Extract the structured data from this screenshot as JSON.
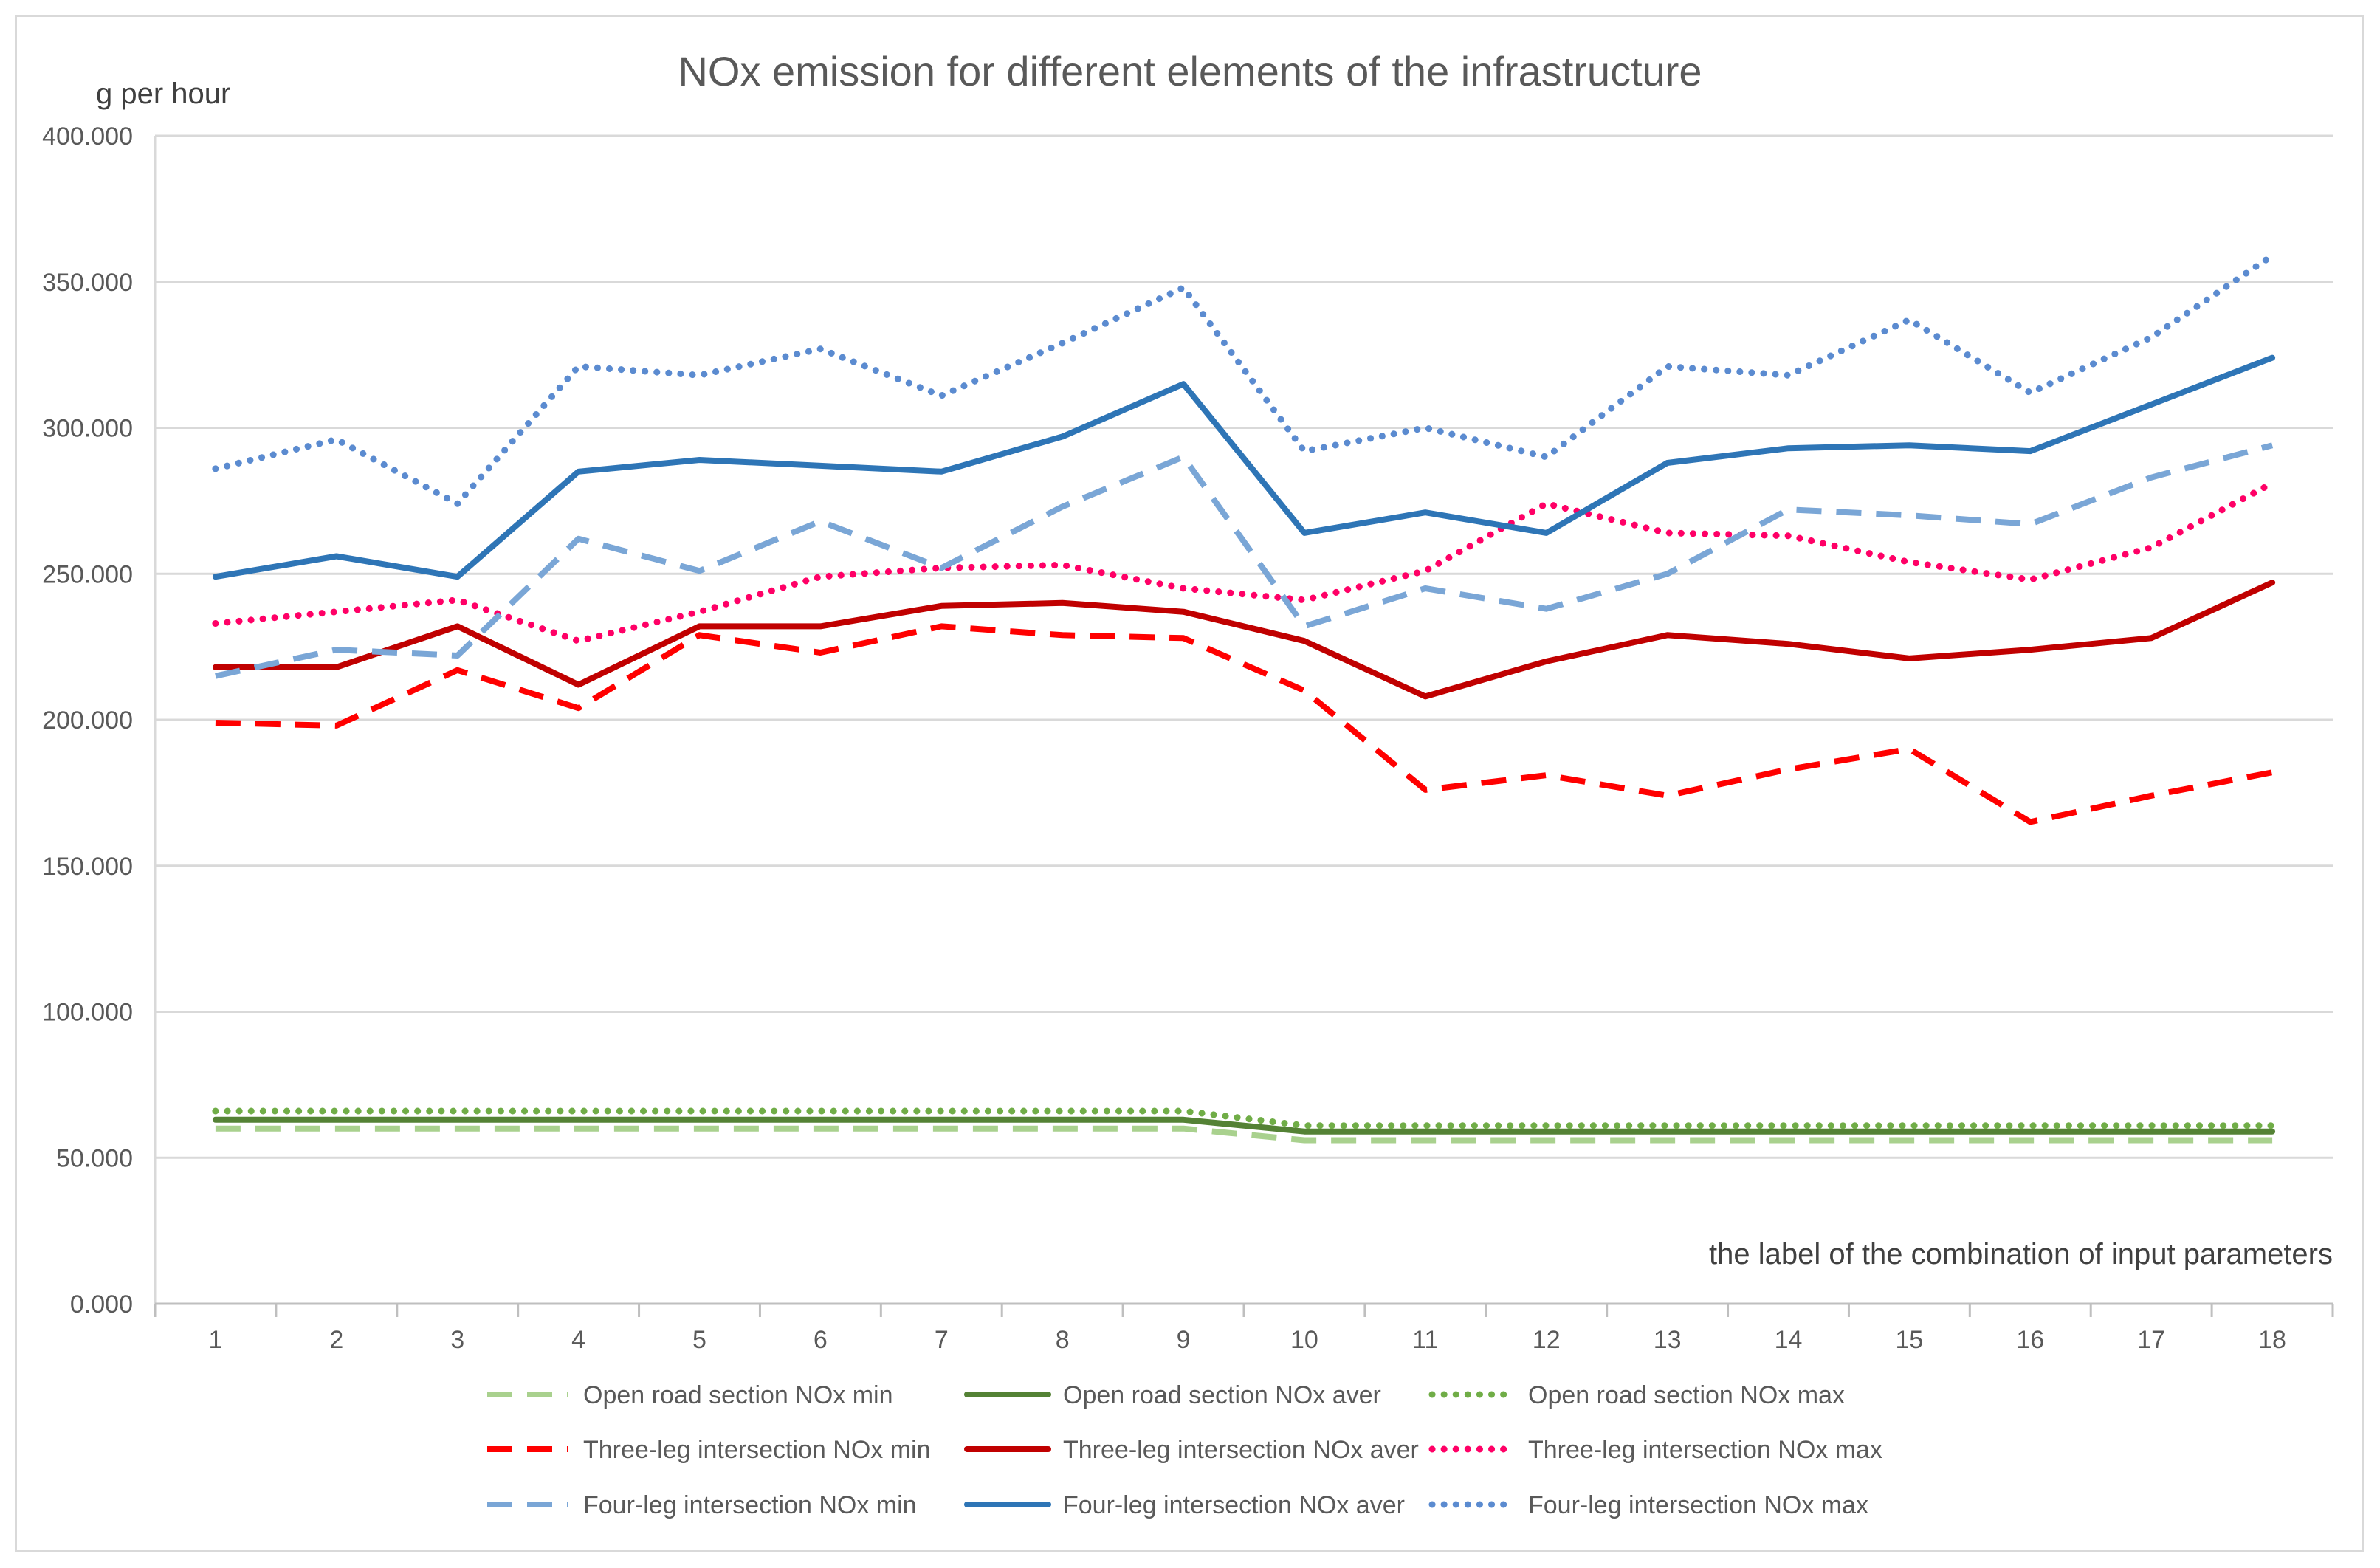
{
  "chart_data": {
    "type": "line",
    "title": "NOx emission for different elements of the infrastructure",
    "ylabel": "g per hour",
    "xlabel": "the label of the combination of input parameters",
    "ylim": [
      0,
      400
    ],
    "yticks": [
      "0.000",
      "50.000",
      "100.000",
      "150.000",
      "200.000",
      "250.000",
      "300.000",
      "350.000",
      "400.000"
    ],
    "categories": [
      "1",
      "2",
      "3",
      "4",
      "5",
      "6",
      "7",
      "8",
      "9",
      "10",
      "11",
      "12",
      "13",
      "14",
      "15",
      "16",
      "17",
      "18"
    ],
    "grid": true,
    "legend_position": "bottom",
    "series": [
      {
        "name": "Open road section NOx min",
        "color": "#a9d18e",
        "style": "dashed",
        "values": [
          60,
          60,
          60,
          60,
          60,
          60,
          60,
          60,
          60,
          56,
          56,
          56,
          56,
          56,
          56,
          56,
          56,
          56
        ]
      },
      {
        "name": "Open road section NOx aver",
        "color": "#548235",
        "style": "solid",
        "values": [
          63,
          63,
          63,
          63,
          63,
          63,
          63,
          63,
          63,
          59,
          59,
          59,
          59,
          59,
          59,
          59,
          59,
          59
        ]
      },
      {
        "name": "Open road section NOx max",
        "color": "#70ad47",
        "style": "dotted",
        "values": [
          66,
          66,
          66,
          66,
          66,
          66,
          66,
          66,
          66,
          61,
          61,
          61,
          61,
          61,
          61,
          61,
          61,
          61
        ]
      },
      {
        "name": "Three-leg intersection NOx min",
        "color": "#ff0000",
        "style": "dashed",
        "values": [
          199,
          198,
          217,
          204,
          229,
          223,
          232,
          229,
          228,
          210,
          176,
          181,
          174,
          183,
          190,
          165,
          174,
          182
        ]
      },
      {
        "name": "Three-leg intersection NOx aver",
        "color": "#c00000",
        "style": "solid",
        "values": [
          218,
          218,
          232,
          212,
          232,
          232,
          239,
          240,
          237,
          227,
          208,
          220,
          229,
          226,
          221,
          224,
          228,
          247
        ]
      },
      {
        "name": "Three-leg intersection NOx max",
        "color": "#ff0066",
        "style": "dotted",
        "values": [
          233,
          237,
          241,
          227,
          237,
          249,
          252,
          253,
          245,
          241,
          251,
          274,
          264,
          263,
          254,
          248,
          259,
          281
        ]
      },
      {
        "name": "Four-leg intersection NOx min",
        "color": "#7aa6d6",
        "style": "dashed",
        "values": [
          215,
          224,
          222,
          262,
          251,
          268,
          252,
          273,
          290,
          232,
          245,
          238,
          250,
          272,
          270,
          267,
          283,
          294
        ]
      },
      {
        "name": "Four-leg intersection NOx aver",
        "color": "#2e75b6",
        "style": "solid",
        "values": [
          249,
          256,
          249,
          285,
          289,
          287,
          285,
          297,
          315,
          264,
          271,
          264,
          288,
          293,
          294,
          292,
          308,
          324
        ]
      },
      {
        "name": "Four-leg intersection NOx max",
        "color": "#5b8bd0",
        "style": "dotted",
        "values": [
          286,
          296,
          274,
          321,
          318,
          327,
          311,
          329,
          348,
          292,
          300,
          290,
          321,
          318,
          337,
          312,
          331,
          359
        ]
      }
    ]
  }
}
